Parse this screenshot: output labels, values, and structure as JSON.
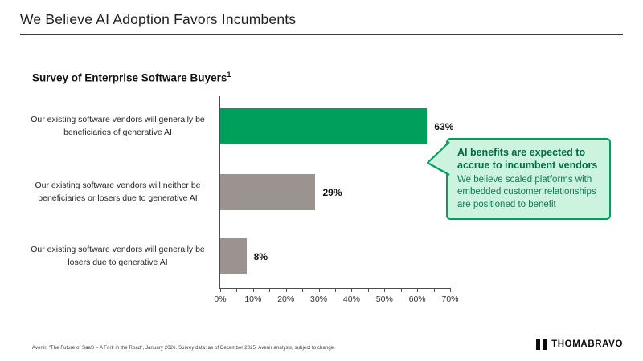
{
  "header": {
    "title": "We Believe AI Adoption Favors Incumbents"
  },
  "chart": {
    "title": "Survey of Enterprise Software Buyers",
    "title_superscript": "1"
  },
  "chart_data": {
    "type": "bar",
    "orientation": "horizontal",
    "title": "Survey of Enterprise Software Buyers¹",
    "categories": [
      "Our existing software vendors will generally be beneficiaries of generative AI",
      "Our existing software vendors will neither be beneficiaries or losers due to generative AI",
      "Our existing software vendors will generally be losers due to generative AI"
    ],
    "values": [
      63,
      29,
      8
    ],
    "value_labels": [
      "63%",
      "29%",
      "8%"
    ],
    "bar_colors": [
      "#009f5c",
      "#9a938f",
      "#9a938f"
    ],
    "xlim": [
      0,
      70
    ],
    "x_tick_labels": [
      "0%",
      "10%",
      "20%",
      "30%",
      "40%",
      "50%",
      "60%",
      "70%"
    ],
    "x_major_tick_step": 10,
    "x_minor_tick_step": 5,
    "grid": false,
    "legend": false,
    "annotation": "AI benefits are expected to accrue to incumbent vendors — We believe scaled platforms with embedded customer relationships are positioned to benefit"
  },
  "callout": {
    "title": "AI benefits are expected to accrue to incumbent vendors",
    "body": "We believe scaled platforms with embedded customer relationships are positioned to benefit",
    "background_color": "#ccf3de",
    "border_color": "#009f5c",
    "title_color": "#006c46",
    "body_color": "#117a52"
  },
  "footer": {
    "footnote": "Avenir, \"The Future of SaaS – A Fork in the Road\", January 2026. Survey data: as of December 2025; Avenir analysis, subject to change.",
    "logo_text": "THOMABRAVO"
  },
  "colors": {
    "accent_green": "#009f5c",
    "neutral_gray_bar": "#9a938f",
    "axis": "#4d4d4d",
    "text": "#1e1e1e"
  }
}
